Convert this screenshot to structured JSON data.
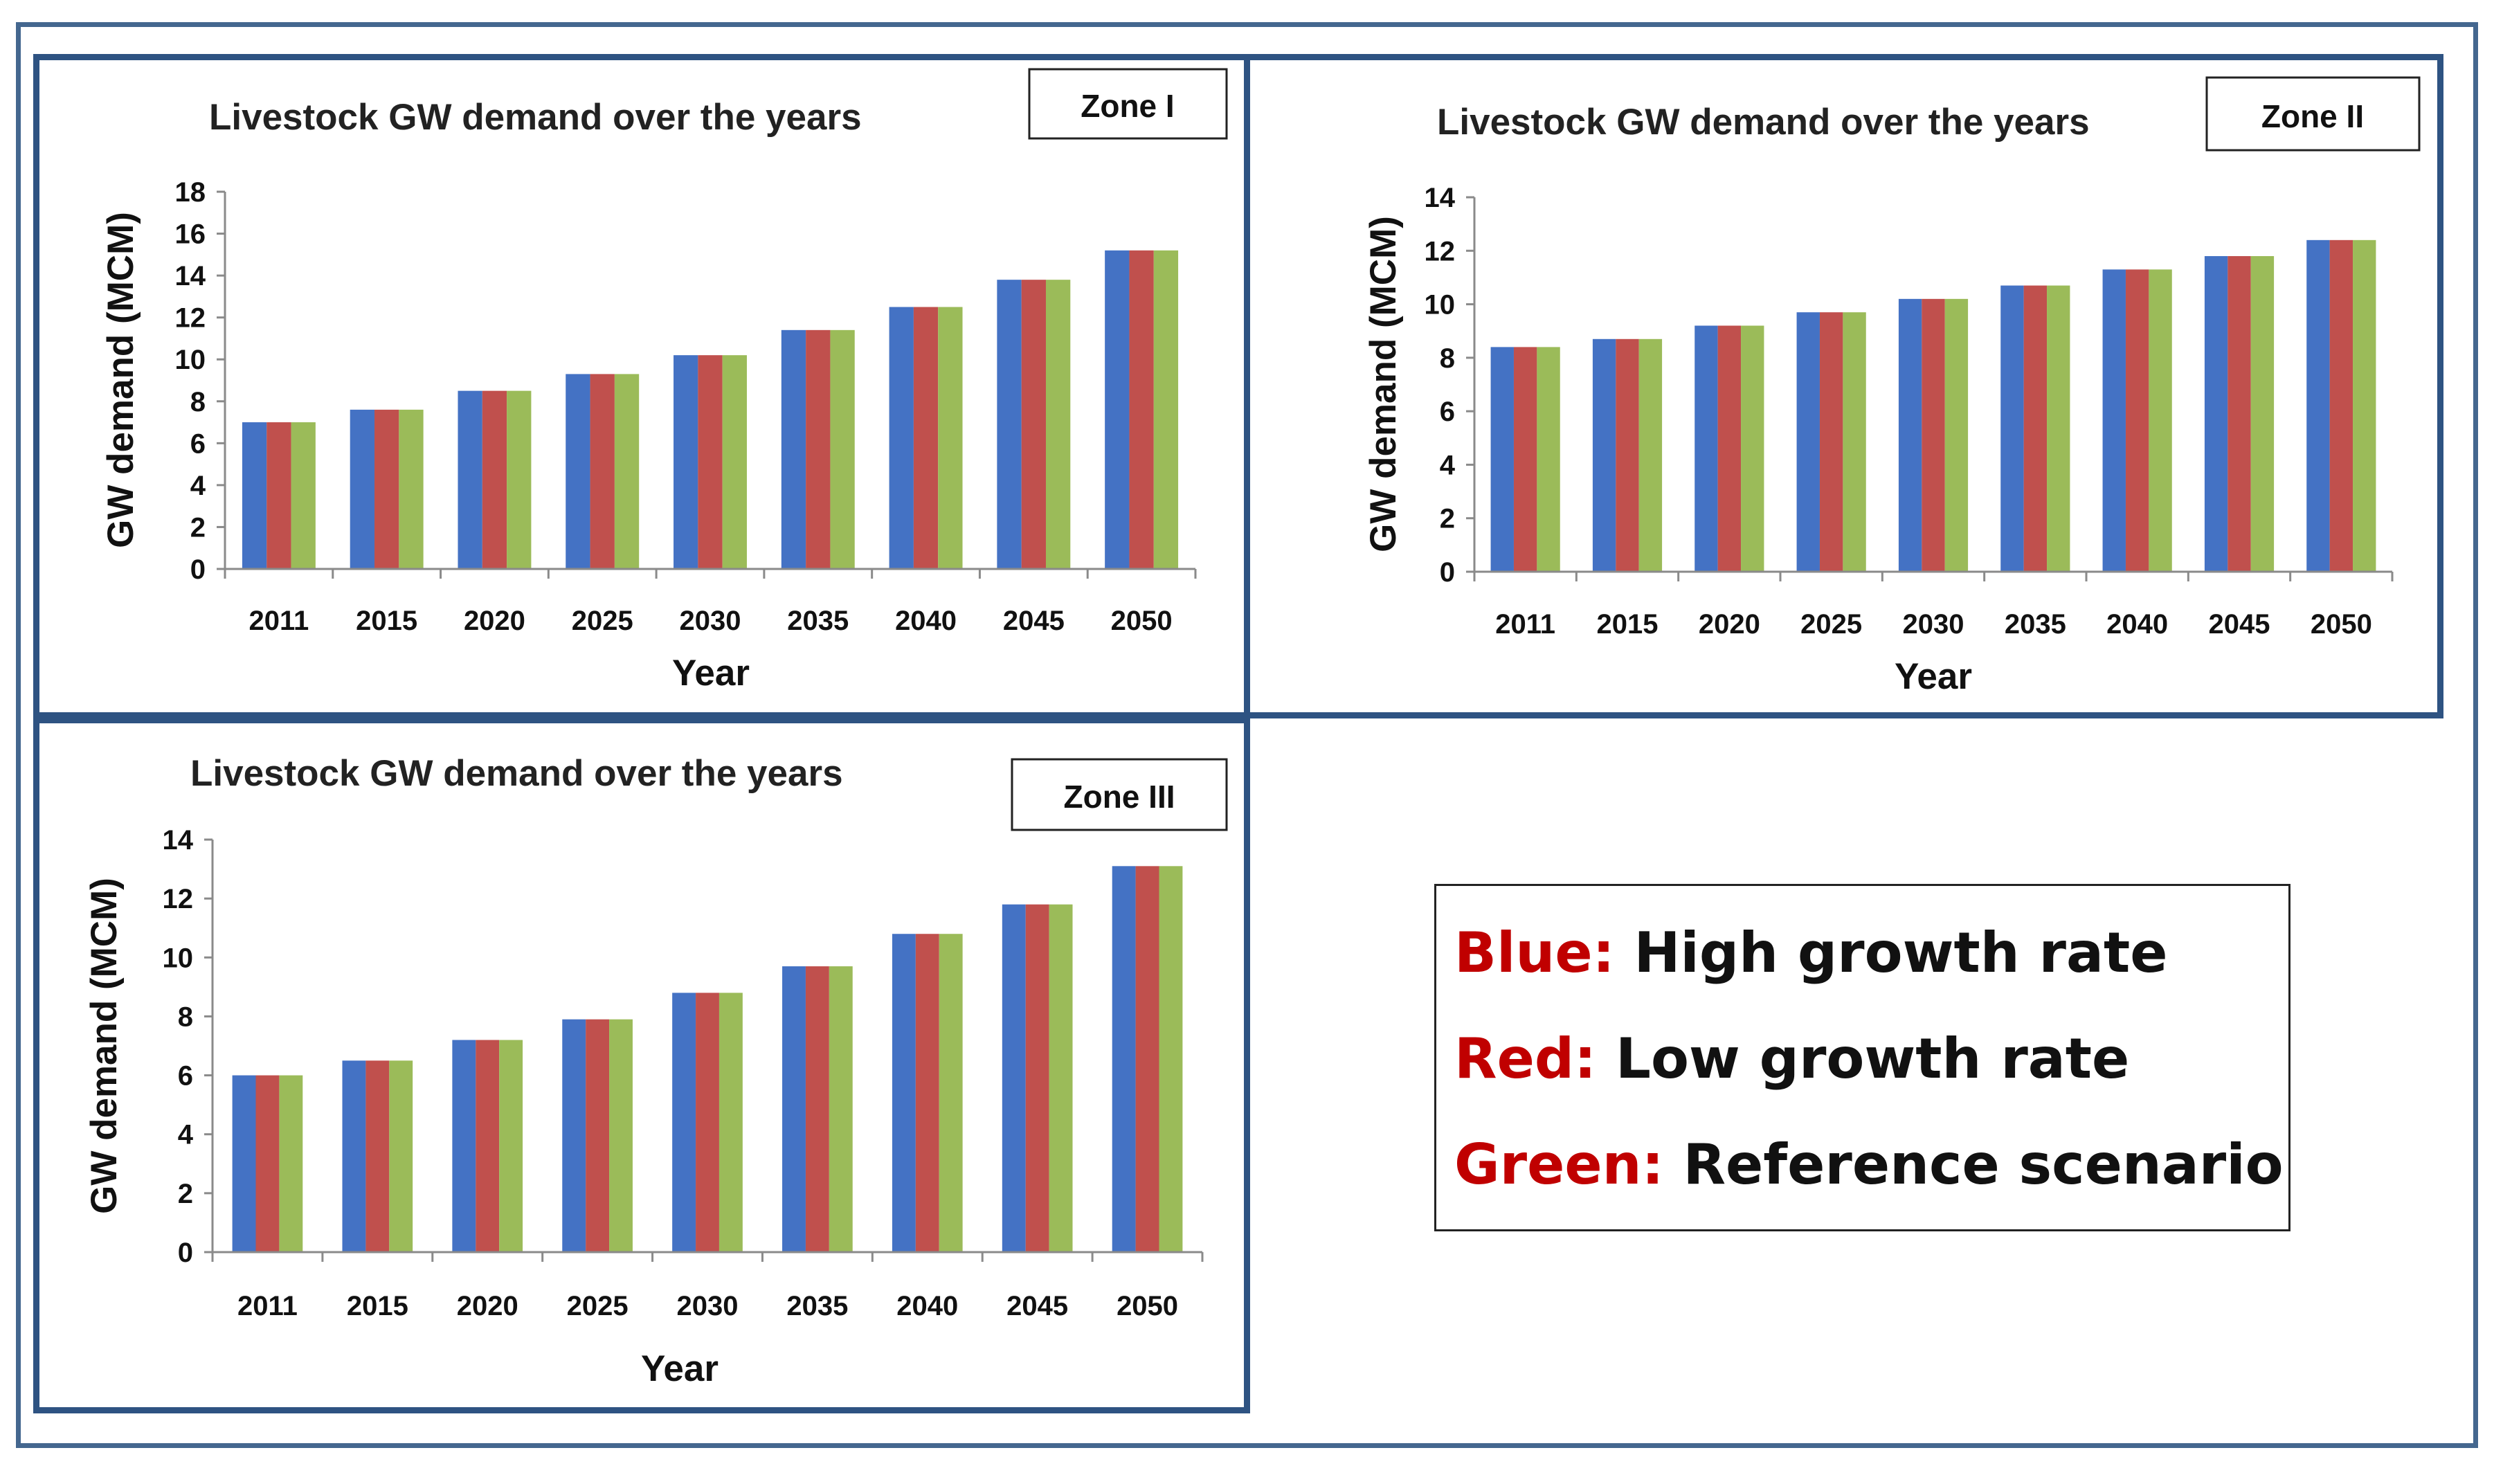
{
  "chart_data": [
    {
      "type": "bar",
      "zone_label": "Zone I",
      "title": "Livestock GW demand over the years",
      "xlabel": "Year",
      "ylabel": "GW demand (MCM)",
      "ylim": [
        0,
        18
      ],
      "yticks": [
        0,
        2,
        4,
        6,
        8,
        10,
        12,
        14,
        16,
        18
      ],
      "categories": [
        "2011",
        "2015",
        "2020",
        "2025",
        "2030",
        "2035",
        "2040",
        "2045",
        "2050"
      ],
      "series": [
        {
          "name": "High growth rate",
          "color": "#4472c4",
          "values": [
            7.0,
            7.6,
            8.5,
            9.3,
            10.2,
            11.4,
            12.5,
            13.8,
            15.2
          ]
        },
        {
          "name": "Low growth rate",
          "color": "#c0504d",
          "values": [
            7.0,
            7.6,
            8.5,
            9.3,
            10.2,
            11.4,
            12.5,
            13.8,
            15.2
          ]
        },
        {
          "name": "Reference scenario",
          "color": "#9bbb59",
          "values": [
            7.0,
            7.6,
            8.5,
            9.3,
            10.2,
            11.4,
            12.5,
            13.8,
            15.2
          ]
        }
      ]
    },
    {
      "type": "bar",
      "zone_label": "Zone II",
      "title": "Livestock GW demand over the years",
      "xlabel": "Year",
      "ylabel": "GW demand (MCM)",
      "ylim": [
        0,
        14
      ],
      "yticks": [
        0,
        2,
        4,
        6,
        8,
        10,
        12,
        14
      ],
      "categories": [
        "2011",
        "2015",
        "2020",
        "2025",
        "2030",
        "2035",
        "2040",
        "2045",
        "2050"
      ],
      "series": [
        {
          "name": "High growth rate",
          "color": "#4472c4",
          "values": [
            8.4,
            8.7,
            9.2,
            9.7,
            10.2,
            10.7,
            11.3,
            11.8,
            12.4
          ]
        },
        {
          "name": "Low growth rate",
          "color": "#c0504d",
          "values": [
            8.4,
            8.7,
            9.2,
            9.7,
            10.2,
            10.7,
            11.3,
            11.8,
            12.4
          ]
        },
        {
          "name": "Reference scenario",
          "color": "#9bbb59",
          "values": [
            8.4,
            8.7,
            9.2,
            9.7,
            10.2,
            10.7,
            11.3,
            11.8,
            12.4
          ]
        }
      ]
    },
    {
      "type": "bar",
      "zone_label": "Zone III",
      "title": "Livestock GW demand over the years",
      "xlabel": "Year",
      "ylabel": "GW demand (MCM)",
      "ylim": [
        0,
        14
      ],
      "yticks": [
        0,
        2,
        4,
        6,
        8,
        10,
        12,
        14
      ],
      "categories": [
        "2011",
        "2015",
        "2020",
        "2025",
        "2030",
        "2035",
        "2040",
        "2045",
        "2050"
      ],
      "series": [
        {
          "name": "High growth rate",
          "color": "#4472c4",
          "values": [
            6.0,
            6.5,
            7.2,
            7.9,
            8.8,
            9.7,
            10.8,
            11.8,
            13.1
          ]
        },
        {
          "name": "Low growth rate",
          "color": "#c0504d",
          "values": [
            6.0,
            6.5,
            7.2,
            7.9,
            8.8,
            9.7,
            10.8,
            11.8,
            13.1
          ]
        },
        {
          "name": "Reference scenario",
          "color": "#9bbb59",
          "values": [
            6.0,
            6.5,
            7.2,
            7.9,
            8.8,
            9.7,
            10.8,
            11.8,
            13.1
          ]
        }
      ]
    }
  ],
  "legend": {
    "blue": {
      "key": "Blue:",
      "desc": "High growth rate"
    },
    "red": {
      "key": "Red:",
      "desc": "Low growth rate"
    },
    "green": {
      "key": "Green:",
      "desc": "Reference scenario"
    }
  }
}
